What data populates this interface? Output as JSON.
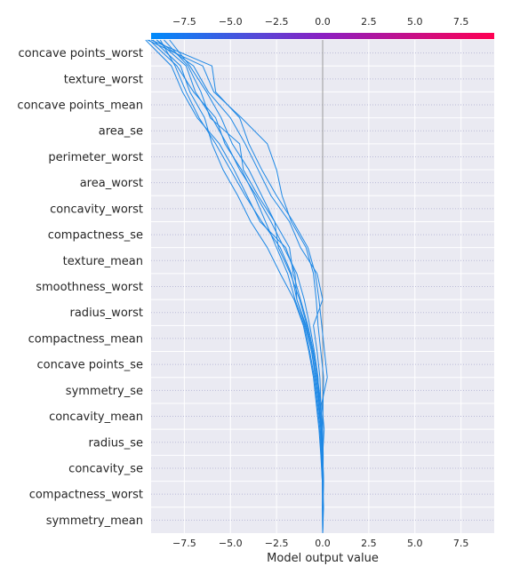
{
  "chart_data": {
    "type": "line",
    "title": "",
    "xlabel": "Model output value",
    "ylabel": "",
    "xlim": [
      -9.3,
      9.3
    ],
    "grid": true,
    "orientation": "decision-plot",
    "xticks": [
      -7.5,
      -5.0,
      -2.5,
      0.0,
      2.5,
      5.0,
      7.5
    ],
    "xtick_labels": [
      "−7.5",
      "−5.0",
      "−2.5",
      "0.0",
      "2.5",
      "5.0",
      "7.5"
    ],
    "base_value": 0.0,
    "colorbar": {
      "from": "#008bfb",
      "to": "#ff0052"
    },
    "line_color": "#1e88e5",
    "features": [
      "concave points_worst",
      "texture_worst",
      "concave points_mean",
      "area_se",
      "perimeter_worst",
      "area_worst",
      "concavity_worst",
      "compactness_se",
      "texture_mean",
      "smoothness_worst",
      "radius_worst",
      "compactness_mean",
      "concave points_se",
      "symmetry_se",
      "concavity_mean",
      "radius_se",
      "concavity_se",
      "compactness_worst",
      "symmetry_mean"
    ],
    "series": [
      {
        "values": [
          0.0,
          0.02,
          0.02,
          0.03,
          0.0,
          0.02,
          0.05,
          -0.1,
          -0.25,
          -0.35,
          -0.5,
          -0.9,
          -1.7,
          -2.2,
          -2.5,
          -3.0,
          -4.4,
          -5.9,
          -6.5,
          -9.5
        ]
      },
      {
        "values": [
          0.0,
          0.0,
          0.05,
          0.0,
          0.08,
          -0.05,
          0.25,
          0.1,
          -0.05,
          -0.2,
          -0.4,
          -0.8,
          -1.6,
          -2.5,
          -3.3,
          -4.0,
          -4.5,
          -5.8,
          -6.0,
          -9.3
        ]
      },
      {
        "values": [
          0.0,
          -0.02,
          0.03,
          -0.05,
          -0.05,
          -0.1,
          -0.15,
          -0.3,
          -0.5,
          0.0,
          -0.3,
          -1.2,
          -1.8,
          -2.8,
          -3.5,
          -4.2,
          -5.0,
          -6.2,
          -7.0,
          -9.0
        ]
      },
      {
        "values": [
          0.0,
          0.05,
          0.0,
          -0.05,
          -0.1,
          -0.2,
          -0.35,
          -0.6,
          -0.9,
          -1.4,
          -1.5,
          -2.0,
          -3.4,
          -4.1,
          -4.8,
          -5.6,
          -6.8,
          -7.6,
          -8.2,
          -9.6
        ]
      },
      {
        "values": [
          0.0,
          0.0,
          -0.02,
          -0.08,
          -0.15,
          -0.3,
          -0.45,
          -0.7,
          -1.0,
          -1.5,
          -1.9,
          -2.5,
          -3.1,
          -3.7,
          -4.4,
          -5.3,
          -5.8,
          -7.0,
          -7.9,
          -9.4
        ]
      },
      {
        "values": [
          0.0,
          0.02,
          0.05,
          0.0,
          -0.02,
          -0.15,
          -0.3,
          -0.5,
          -0.8,
          -1.2,
          -1.6,
          -1.8,
          -2.6,
          -3.5,
          -4.3,
          -4.5,
          -6.1,
          -6.6,
          -7.3,
          -8.6
        ]
      },
      {
        "values": [
          0.0,
          0.03,
          0.0,
          -0.02,
          -0.05,
          -0.2,
          -0.25,
          -0.45,
          -0.7,
          -1.0,
          -1.4,
          -2.1,
          -2.8,
          -3.6,
          -4.5,
          -5.2,
          -6.0,
          -6.9,
          -7.4,
          -9.0
        ]
      },
      {
        "values": [
          0.0,
          -0.01,
          -0.02,
          -0.1,
          -0.2,
          -0.35,
          -0.5,
          -0.75,
          -1.05,
          -1.55,
          -2.3,
          -3.0,
          -3.9,
          -4.6,
          -5.4,
          -6.0,
          -6.4,
          -7.2,
          -7.7,
          -9.2
        ]
      },
      {
        "values": [
          0.0,
          0.01,
          0.0,
          -0.04,
          -0.1,
          -0.25,
          -0.4,
          -0.6,
          -0.95,
          -1.4,
          -1.7,
          -2.3,
          -3.3,
          -4.2,
          -5.0,
          -5.8,
          -6.7,
          -7.4,
          -8.0,
          -8.8
        ]
      },
      {
        "values": [
          0.0,
          0.0,
          0.03,
          0.02,
          -0.02,
          -0.1,
          -0.28,
          -0.55,
          -0.85,
          -1.25,
          -1.75,
          -2.4,
          -2.6,
          -3.3,
          -4.0,
          -4.9,
          -5.5,
          -6.3,
          -7.2,
          -8.3
        ]
      }
    ]
  }
}
